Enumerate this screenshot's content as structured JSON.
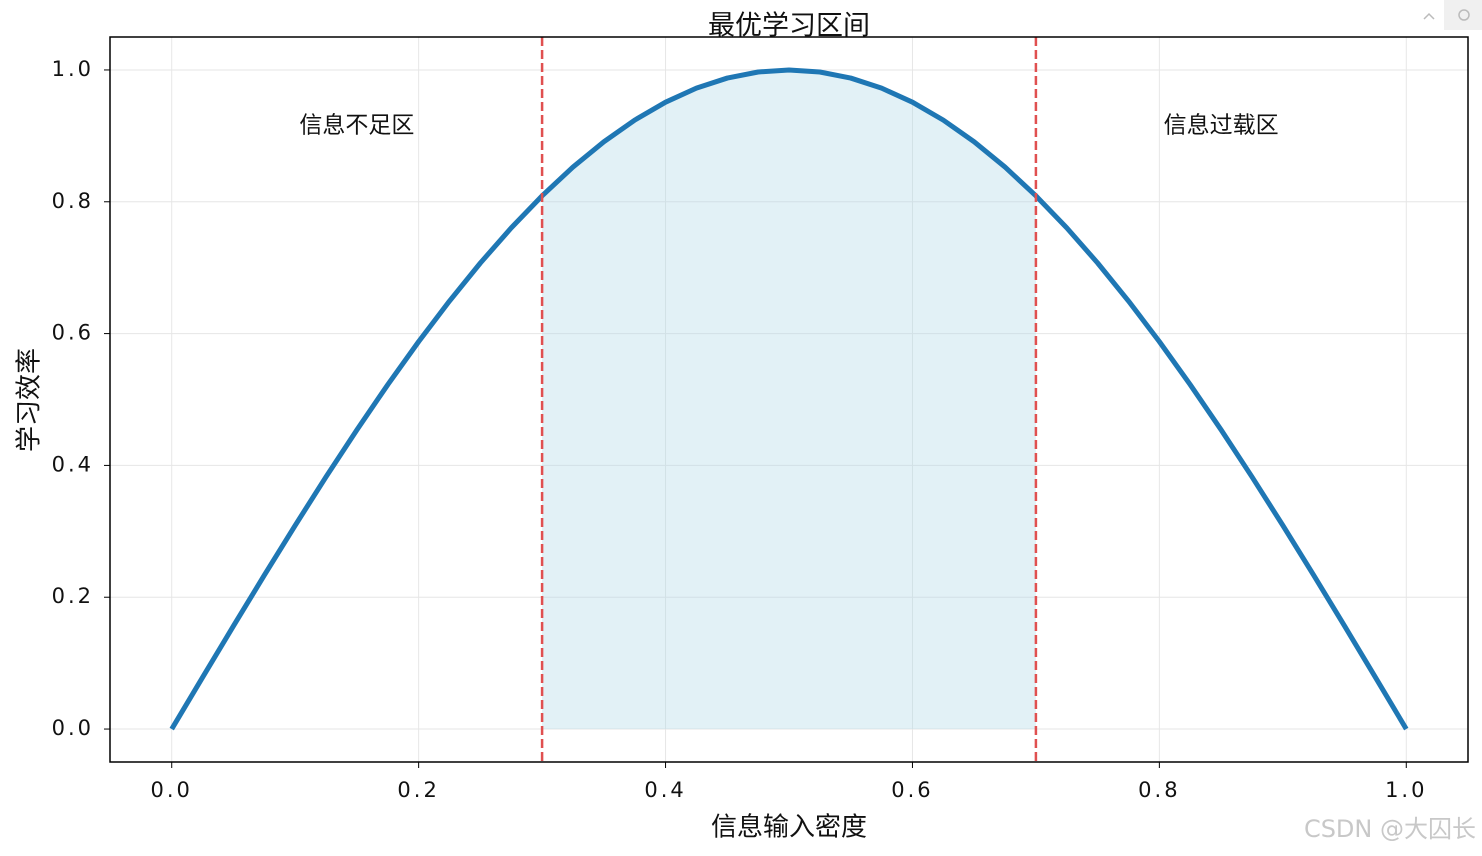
{
  "chart_data": {
    "type": "line",
    "title": "最优学习区间",
    "xlabel": "信息输入密度",
    "ylabel": "学习效率",
    "x": [
      0,
      0.025,
      0.05,
      0.075,
      0.1,
      0.125,
      0.15,
      0.175,
      0.2,
      0.225,
      0.25,
      0.275,
      0.3,
      0.325,
      0.35,
      0.375,
      0.4,
      0.425,
      0.45,
      0.475,
      0.5,
      0.525,
      0.55,
      0.575,
      0.6,
      0.625,
      0.65,
      0.675,
      0.7,
      0.725,
      0.75,
      0.775,
      0.8,
      0.825,
      0.85,
      0.875,
      0.9,
      0.925,
      0.95,
      0.975,
      1
    ],
    "series": [
      {
        "color": "#1f77b4",
        "values": [
          0,
          0.0785,
          0.1564,
          0.2334,
          0.309,
          0.3827,
          0.454,
          0.5225,
          0.5878,
          0.6494,
          0.7071,
          0.7604,
          0.809,
          0.8526,
          0.891,
          0.9239,
          0.9511,
          0.9724,
          0.9877,
          0.9969,
          1,
          0.9969,
          0.9877,
          0.9724,
          0.9511,
          0.9239,
          0.891,
          0.8526,
          0.809,
          0.7604,
          0.7071,
          0.6494,
          0.5878,
          0.5225,
          0.454,
          0.3827,
          0.309,
          0.2334,
          0.1564,
          0.0785,
          0
        ]
      }
    ],
    "shade": {
      "range": [
        0.3,
        0.7
      ],
      "color": "#add8e6"
    },
    "vlines": {
      "values": [
        0.3,
        0.7
      ],
      "color": "#e05050"
    },
    "annotations": [
      {
        "text": "信息不足区",
        "x": 0.15,
        "y": 0.915
      },
      {
        "text": "信息过载区",
        "x": 0.85,
        "y": 0.915
      }
    ],
    "xlim": [
      -0.05,
      1.05
    ],
    "ylim": [
      -0.05,
      1.05
    ],
    "xticks": [
      {
        "value": 0,
        "label": "0.0"
      },
      0.2,
      0.4,
      0.6,
      0.8,
      {
        "value": 1,
        "label": "1.0"
      }
    ],
    "yticks": [
      {
        "value": 0,
        "label": "0.0"
      },
      0.2,
      0.4,
      0.6,
      0.8,
      {
        "value": 1,
        "label": "1.0"
      }
    ],
    "grid": true
  },
  "watermark": "CSDN @大囚长"
}
